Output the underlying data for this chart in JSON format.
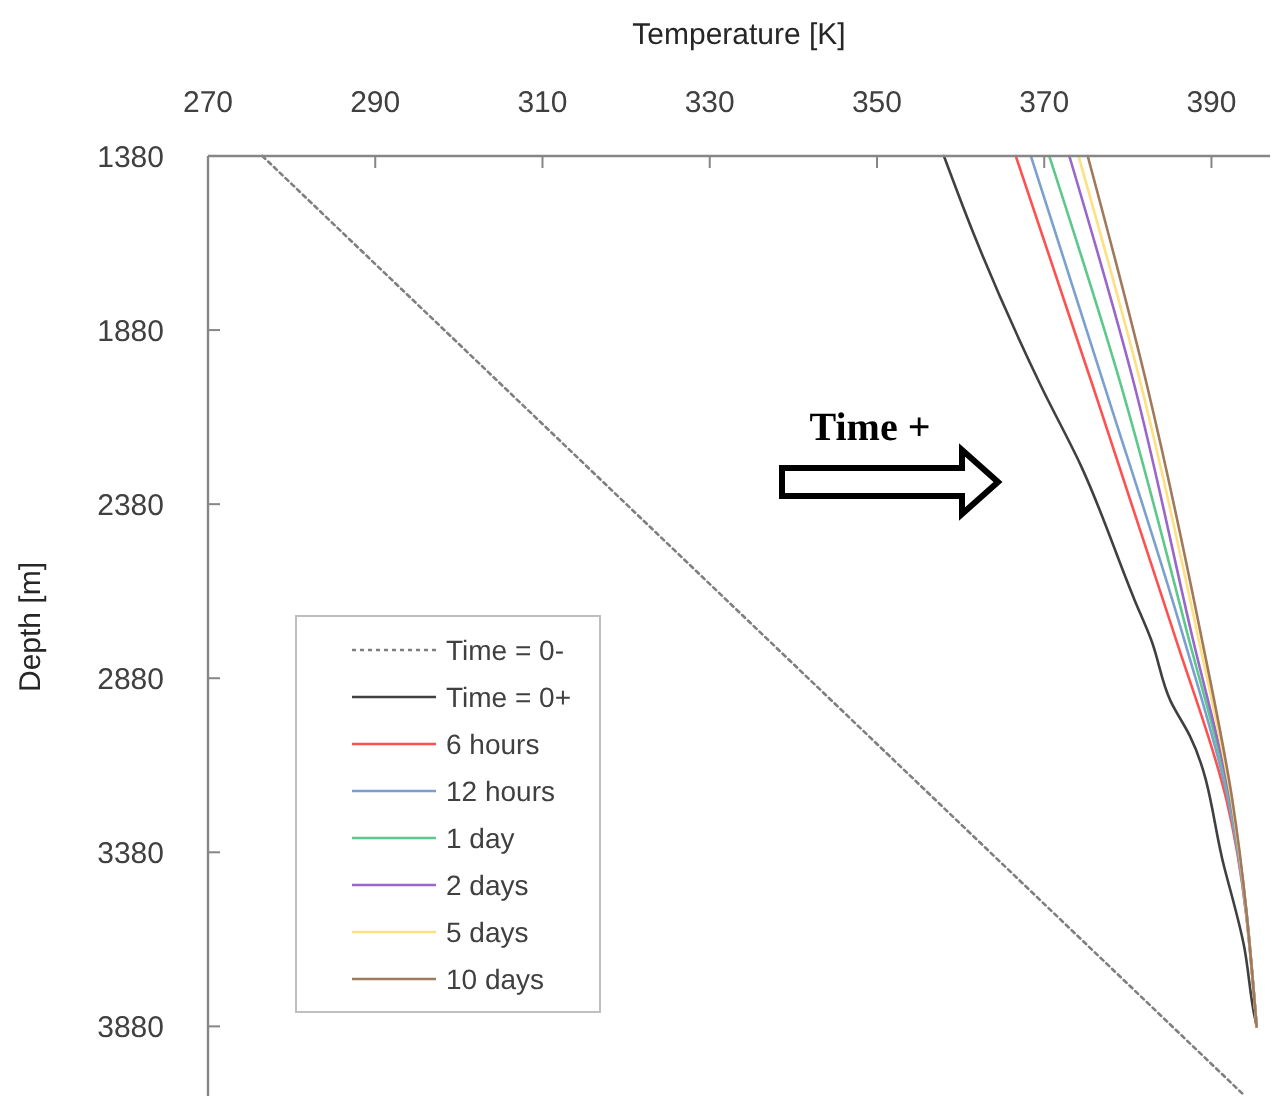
{
  "chart_data": {
    "type": "line",
    "xlabel": "Temperature [K]",
    "ylabel": "Depth [m]",
    "xlim": [
      270,
      397
    ],
    "xticks": [
      270,
      290,
      310,
      330,
      350,
      370,
      390
    ],
    "ylim": [
      4080,
      1380
    ],
    "yticks": [
      1380,
      1880,
      2380,
      2880,
      3380,
      3880
    ],
    "grid": false,
    "legend": "bottom left",
    "annotations": [
      "Time +"
    ],
    "series": [
      {
        "name": "Time = 0-",
        "color": "#7f7f7f",
        "line_style": "dotted",
        "x": [
          276.5,
          394
        ],
        "values": [
          1380,
          4080
        ]
      },
      {
        "name": "Time = 0+",
        "color": "#404040",
        "x": [
          358.0,
          361.5,
          369.6,
          374.4,
          380.8,
          382.8,
          385.1,
          387.4,
          391.5,
          393.9,
          395.1,
          395.4
        ],
        "values": [
          1380,
          1600,
          2040,
          2270,
          2655,
          2770,
          2945,
          3045,
          3420,
          3650,
          3845,
          3880
        ]
      },
      {
        "name": "6 hours",
        "color": "#ff5050",
        "x": [
          366.6,
          375.8,
          385.5,
          391.8,
          395.4
        ],
        "values": [
          1380,
          2040,
          2750,
          3230,
          3880
        ]
      },
      {
        "name": "12 hours",
        "color": "#7aa0d0",
        "x": [
          368.4,
          377.2,
          386.5,
          392.0,
          395.4
        ],
        "values": [
          1380,
          2040,
          2750,
          3230,
          3880
        ]
      },
      {
        "name": "1 day",
        "color": "#5cc88a",
        "x": [
          370.6,
          379.2,
          387.1,
          392.2,
          395.4
        ],
        "values": [
          1380,
          2040,
          2750,
          3230,
          3880
        ]
      },
      {
        "name": "2 days",
        "color": "#9966cc",
        "x": [
          373.0,
          380.8,
          387.6,
          392.3,
          395.4
        ],
        "values": [
          1380,
          2040,
          2750,
          3230,
          3880
        ]
      },
      {
        "name": "5 days",
        "color": "#ffe080",
        "x": [
          374.1,
          381.6,
          388.3,
          392.4,
          395.4
        ],
        "values": [
          1380,
          2040,
          2750,
          3230,
          3880
        ]
      },
      {
        "name": "10 days",
        "color": "#a0785a",
        "x": [
          375.2,
          382.3,
          388.7,
          392.5,
          395.4
        ],
        "values": [
          1380,
          2040,
          2750,
          3230,
          3880
        ]
      }
    ]
  }
}
